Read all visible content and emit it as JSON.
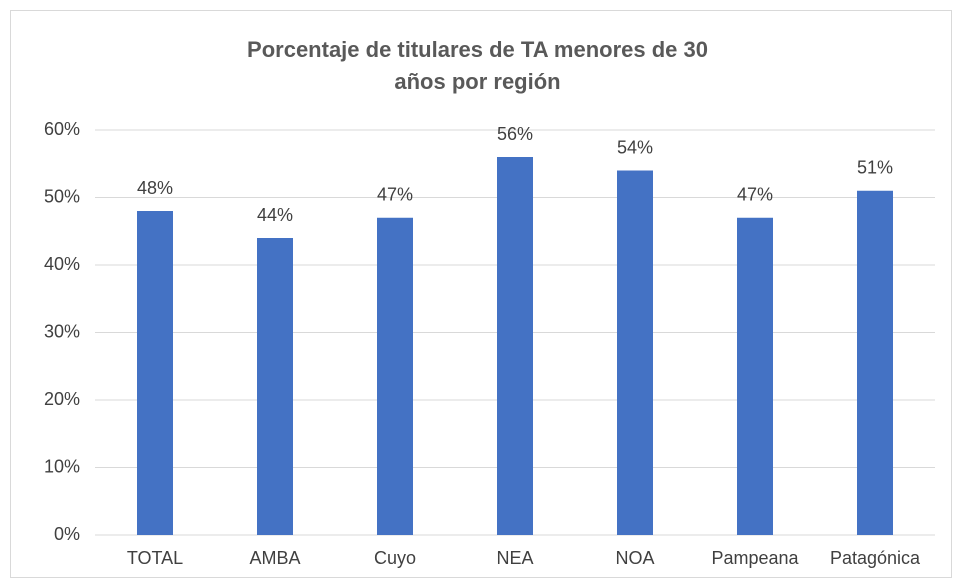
{
  "chart_data": {
    "type": "bar",
    "title": "Porcentaje de titulares de TA menores de 30 años por región",
    "categories": [
      "TOTAL",
      "AMBA",
      "Cuyo",
      "NEA",
      "NOA",
      "Pampeana",
      "Patagónica"
    ],
    "values": [
      48,
      44,
      47,
      56,
      54,
      47,
      51
    ],
    "value_labels": [
      "48%",
      "44%",
      "47%",
      "56%",
      "54%",
      "47%",
      "51%"
    ],
    "color": "#4472c4",
    "ylim": [
      0,
      60
    ],
    "yticks": [
      {
        "value": 0,
        "label": "0%"
      },
      {
        "value": 10,
        "label": "10%"
      },
      {
        "value": 20,
        "label": "20%"
      },
      {
        "value": 30,
        "label": "30%"
      },
      {
        "value": 40,
        "label": "40%"
      },
      {
        "value": 50,
        "label": "50%"
      },
      {
        "value": 60,
        "label": "60%"
      }
    ],
    "grid": true
  }
}
